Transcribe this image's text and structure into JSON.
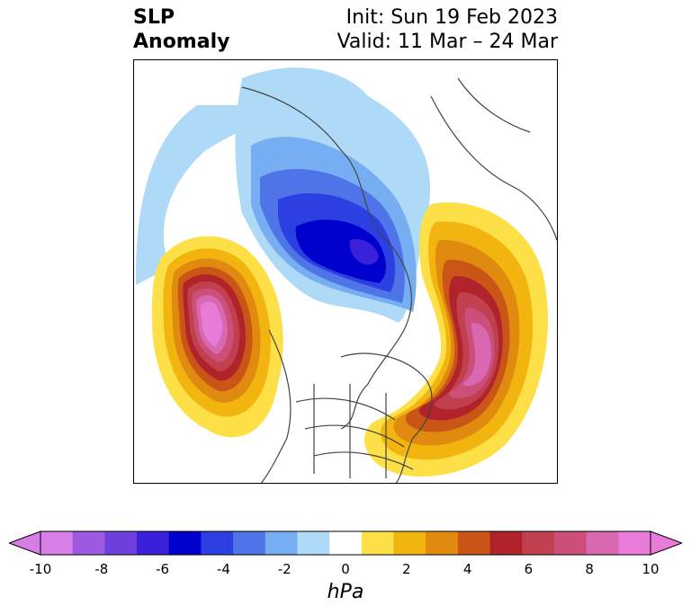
{
  "title": {
    "left_line1": "SLP",
    "left_line2": "Anomaly",
    "init": "Init: Sun 19 Feb 2023",
    "valid": "Valid: 11 Mar – 24 Mar"
  },
  "colorbar": {
    "unit": "hPa",
    "tick_labels": [
      "-10",
      "-8",
      "-6",
      "-4",
      "-2",
      "0",
      "2",
      "4",
      "6",
      "8",
      "10"
    ],
    "colors": [
      "#d77ee8",
      "#9d59e0",
      "#6f3fdc",
      "#3a20d8",
      "#0000cd",
      "#2c3fe0",
      "#4f74e8",
      "#77aef2",
      "#aedaf8",
      "#ffffff",
      "#fde047",
      "#f2b50f",
      "#e08a10",
      "#c95616",
      "#b0232b",
      "#c0404f",
      "#cb4f78",
      "#d868b0",
      "#e87ad8"
    ],
    "under_color": "#d87de6",
    "over_color": "#e87ad8"
  }
}
